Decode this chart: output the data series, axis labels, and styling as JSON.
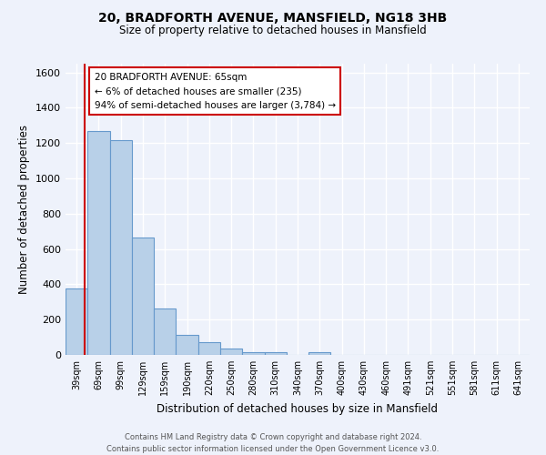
{
  "title": "20, BRADFORTH AVENUE, MANSFIELD, NG18 3HB",
  "subtitle": "Size of property relative to detached houses in Mansfield",
  "xlabel": "Distribution of detached houses by size in Mansfield",
  "ylabel": "Number of detached properties",
  "bar_values": [
    375,
    1270,
    1215,
    665,
    265,
    115,
    70,
    35,
    15,
    15,
    0,
    15,
    0,
    0,
    0,
    0,
    0,
    0,
    0,
    0,
    0
  ],
  "categories": [
    "39sqm",
    "69sqm",
    "99sqm",
    "129sqm",
    "159sqm",
    "190sqm",
    "220sqm",
    "250sqm",
    "280sqm",
    "310sqm",
    "340sqm",
    "370sqm",
    "400sqm",
    "430sqm",
    "460sqm",
    "491sqm",
    "521sqm",
    "551sqm",
    "581sqm",
    "611sqm",
    "641sqm"
  ],
  "bar_color": "#b8d0e8",
  "bar_edge_color": "#6699cc",
  "bar_edge_width": 0.8,
  "background_color": "#eef2fb",
  "grid_color": "#ffffff",
  "ylim": [
    0,
    1650
  ],
  "yticks": [
    0,
    200,
    400,
    600,
    800,
    1000,
    1200,
    1400,
    1600
  ],
  "property_line_color": "#cc0000",
  "annotation_title": "20 BRADFORTH AVENUE: 65sqm",
  "annotation_line1": "← 6% of detached houses are smaller (235)",
  "annotation_line2": "94% of semi-detached houses are larger (3,784) →",
  "annotation_box_color": "#ffffff",
  "annotation_box_edge": "#cc0000",
  "footer_line1": "Contains HM Land Registry data © Crown copyright and database right 2024.",
  "footer_line2": "Contains public sector information licensed under the Open Government Licence v3.0."
}
